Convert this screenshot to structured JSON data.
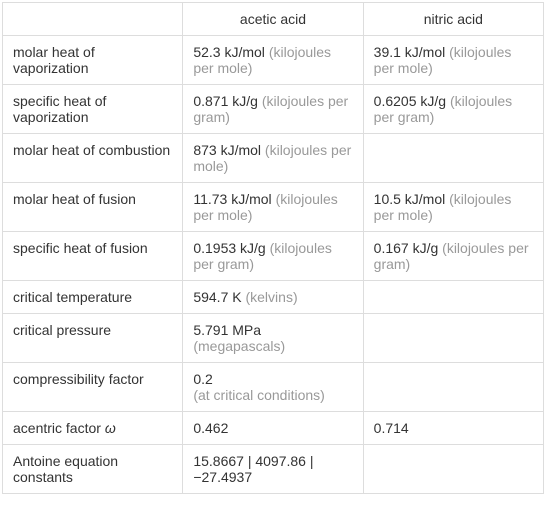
{
  "headers": {
    "acetic": "acetic acid",
    "nitric": "nitric acid"
  },
  "rows": {
    "molar_heat_vap": {
      "label": "molar heat of vaporization",
      "acetic_val": "52.3 kJ/mol ",
      "acetic_unit": "(kilojoules per mole)",
      "nitric_val": "39.1 kJ/mol ",
      "nitric_unit": "(kilojoules per mole)"
    },
    "specific_heat_vap": {
      "label": "specific heat of vaporization",
      "acetic_val": "0.871 kJ/g ",
      "acetic_unit": "(kilojoules per gram)",
      "nitric_val": "0.6205 kJ/g ",
      "nitric_unit": "(kilojoules per gram)"
    },
    "molar_heat_comb": {
      "label": "molar heat of combustion",
      "acetic_val": "873 kJ/mol ",
      "acetic_unit": "(kilojoules per mole)",
      "nitric_val": "",
      "nitric_unit": ""
    },
    "molar_heat_fusion": {
      "label": "molar heat of fusion",
      "acetic_val": "11.73 kJ/mol ",
      "acetic_unit": "(kilojoules per mole)",
      "nitric_val": "10.5 kJ/mol ",
      "nitric_unit": "(kilojoules per mole)"
    },
    "specific_heat_fusion": {
      "label": "specific heat of fusion",
      "acetic_val": "0.1953 kJ/g ",
      "acetic_unit": "(kilojoules per gram)",
      "nitric_val": "0.167 kJ/g ",
      "nitric_unit": "(kilojoules per gram)"
    },
    "critical_temp": {
      "label": "critical temperature",
      "acetic_val": "594.7 K ",
      "acetic_unit": "(kelvins)",
      "nitric_val": "",
      "nitric_unit": ""
    },
    "critical_pressure": {
      "label": "critical pressure",
      "acetic_val": "5.791 MPa ",
      "acetic_unit": "(megapascals)",
      "nitric_val": "",
      "nitric_unit": ""
    },
    "compressibility": {
      "label": "compressibility factor",
      "acetic_val": "0.2",
      "acetic_unit": "(at critical conditions)",
      "nitric_val": "",
      "nitric_unit": ""
    },
    "acentric": {
      "label_pre": "acentric factor ",
      "label_sym": "ω",
      "acetic_val": "0.462",
      "acetic_unit": "",
      "nitric_val": "0.714",
      "nitric_unit": ""
    },
    "antoine": {
      "label": "Antoine equation constants",
      "acetic_val": "15.8667  |  4097.86  |  −27.4937",
      "acetic_unit": "",
      "nitric_val": "",
      "nitric_unit": ""
    }
  }
}
